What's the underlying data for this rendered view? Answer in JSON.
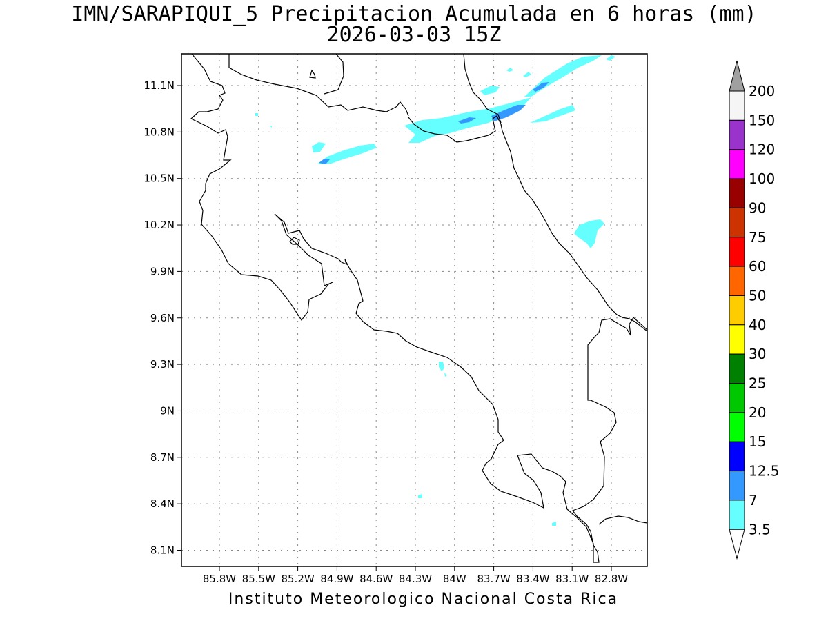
{
  "title": "IMN/SARAPIQUI_5 Precipitacion Acumulada en 6 horas (mm)",
  "subtitle": "2026-03-03 15Z",
  "footer": "Instituto Meteorologico Nacional Costa Rica",
  "map": {
    "lon_range": [
      -86.0,
      -83.0
    ],
    "lat_range": [
      8.0,
      11.3
    ],
    "x_ticks": [
      {
        "value": -85.8,
        "label": "85.8W"
      },
      {
        "value": -85.5,
        "label": "85.5W"
      },
      {
        "value": -85.2,
        "label": "85.2W"
      },
      {
        "value": -84.9,
        "label": "84.9W"
      },
      {
        "value": -84.6,
        "label": "84.6W"
      },
      {
        "value": -84.3,
        "label": "84.3W"
      },
      {
        "value": -84.0,
        "label": "84W"
      },
      {
        "value": -83.7,
        "label": "83.7W"
      },
      {
        "value": -83.4,
        "label": "83.4W"
      },
      {
        "value": -83.1,
        "label": "83.1W"
      },
      {
        "value": -82.8,
        "label": "82.8W"
      }
    ],
    "y_ticks": [
      {
        "value": 11.1,
        "label": "11.1N"
      },
      {
        "value": 10.8,
        "label": "10.8N"
      },
      {
        "value": 10.5,
        "label": "10.5N"
      },
      {
        "value": 10.2,
        "label": "10.2N"
      },
      {
        "value": 9.9,
        "label": "9.9N"
      },
      {
        "value": 9.6,
        "label": "9.6N"
      },
      {
        "value": 9.3,
        "label": "9.3N"
      },
      {
        "value": 9.0,
        "label": "9N"
      },
      {
        "value": 8.7,
        "label": "8.7N"
      },
      {
        "value": 8.4,
        "label": "8.4N"
      },
      {
        "value": 8.1,
        "label": "8.1N"
      }
    ],
    "grid": true
  },
  "legend": {
    "levels": [
      "200",
      "150",
      "120",
      "100",
      "90",
      "75",
      "60",
      "50",
      "40",
      "30",
      "25",
      "20",
      "15",
      "12.5",
      "7",
      "3.5"
    ],
    "colors_top_to_bottom": [
      "#f5f5f5",
      "#9933cc",
      "#ff00ff",
      "#990000",
      "#cc3300",
      "#ff0000",
      "#ff6600",
      "#ffcc00",
      "#ffff00",
      "#008000",
      "#00c800",
      "#00ff00",
      "#0000ff",
      "#3399ff",
      "#66ffff"
    ],
    "over_color": "#a0a0a0",
    "under_color": "#ffffff"
  },
  "colors": {
    "precip_3_5": "#66ffff",
    "precip_7": "#3399ff",
    "coast": "#000000",
    "grid": "#888888"
  }
}
